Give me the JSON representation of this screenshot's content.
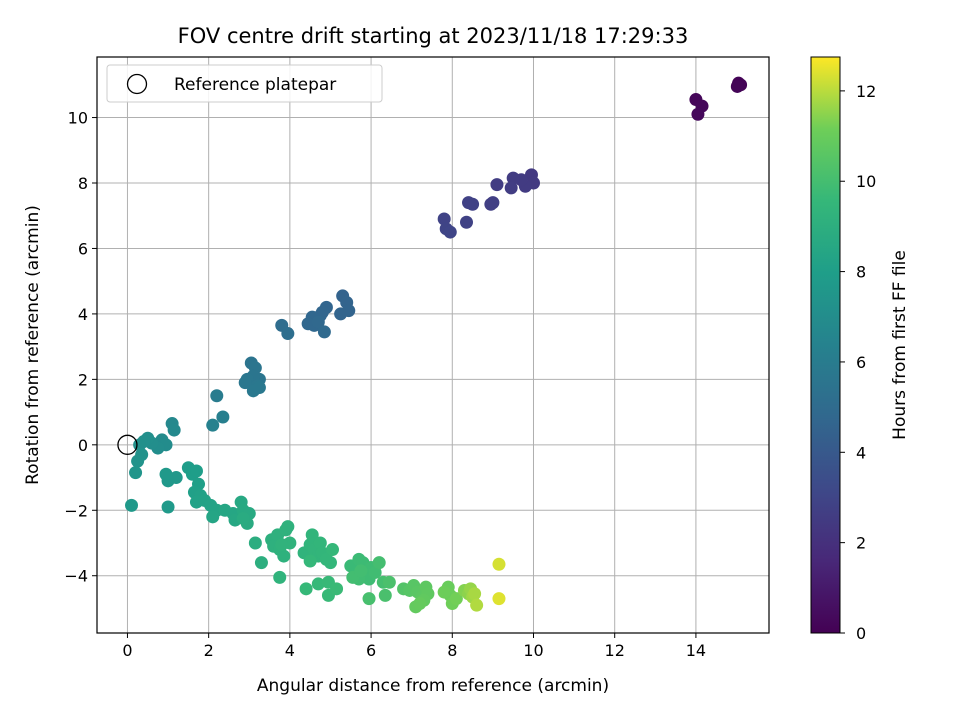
{
  "chart_data": {
    "type": "scatter",
    "title": "FOV centre drift starting at 2023/11/18 17:29:33",
    "xlabel": "Angular distance from reference (arcmin)",
    "ylabel": "Rotation from reference (arcmin)",
    "xlim": [
      -0.75,
      15.8
    ],
    "ylim": [
      -5.75,
      11.85
    ],
    "xticks": [
      0,
      2,
      4,
      6,
      8,
      10,
      12,
      14
    ],
    "yticks": [
      -4,
      -2,
      0,
      2,
      4,
      6,
      8,
      10
    ],
    "grid": true,
    "legend": {
      "position": "top-left",
      "entries": [
        "Reference platepar"
      ]
    },
    "reference_point": {
      "x": 0,
      "y": 0
    },
    "colorbar": {
      "label": "Hours from first FF file",
      "colormap": "viridis",
      "range": [
        0,
        12.75
      ],
      "ticks": [
        0,
        2,
        4,
        6,
        8,
        10,
        12
      ]
    },
    "points": [
      {
        "x": 15.05,
        "y": 11.05,
        "c": 0.1
      },
      {
        "x": 15.1,
        "y": 11.0,
        "c": 0.1
      },
      {
        "x": 15.02,
        "y": 10.95,
        "c": 0.15
      },
      {
        "x": 14.0,
        "y": 10.55,
        "c": 0.2
      },
      {
        "x": 14.15,
        "y": 10.35,
        "c": 0.25
      },
      {
        "x": 14.05,
        "y": 10.1,
        "c": 0.3
      },
      {
        "x": 9.95,
        "y": 8.25,
        "c": 2.4
      },
      {
        "x": 10.0,
        "y": 8.0,
        "c": 2.45
      },
      {
        "x": 9.8,
        "y": 7.9,
        "c": 2.5
      },
      {
        "x": 9.7,
        "y": 8.1,
        "c": 2.5
      },
      {
        "x": 9.5,
        "y": 8.15,
        "c": 2.55
      },
      {
        "x": 9.45,
        "y": 7.85,
        "c": 2.6
      },
      {
        "x": 9.1,
        "y": 7.95,
        "c": 2.6
      },
      {
        "x": 9.0,
        "y": 7.4,
        "c": 2.7
      },
      {
        "x": 8.95,
        "y": 7.35,
        "c": 2.7
      },
      {
        "x": 8.5,
        "y": 7.35,
        "c": 2.8
      },
      {
        "x": 8.4,
        "y": 7.4,
        "c": 2.8
      },
      {
        "x": 8.35,
        "y": 6.8,
        "c": 2.85
      },
      {
        "x": 7.8,
        "y": 6.9,
        "c": 2.9
      },
      {
        "x": 7.85,
        "y": 6.6,
        "c": 2.95
      },
      {
        "x": 7.95,
        "y": 6.5,
        "c": 3.0
      },
      {
        "x": 5.3,
        "y": 4.55,
        "c": 4.5
      },
      {
        "x": 5.4,
        "y": 4.35,
        "c": 4.55
      },
      {
        "x": 5.45,
        "y": 4.1,
        "c": 4.6
      },
      {
        "x": 5.25,
        "y": 4.0,
        "c": 4.6
      },
      {
        "x": 4.9,
        "y": 4.2,
        "c": 4.65
      },
      {
        "x": 4.8,
        "y": 4.05,
        "c": 4.7
      },
      {
        "x": 4.75,
        "y": 3.95,
        "c": 4.7
      },
      {
        "x": 4.55,
        "y": 3.9,
        "c": 4.75
      },
      {
        "x": 4.45,
        "y": 3.7,
        "c": 4.8
      },
      {
        "x": 4.6,
        "y": 3.65,
        "c": 4.8
      },
      {
        "x": 4.7,
        "y": 3.75,
        "c": 4.85
      },
      {
        "x": 4.85,
        "y": 3.45,
        "c": 4.9
      },
      {
        "x": 3.8,
        "y": 3.65,
        "c": 5.1
      },
      {
        "x": 3.95,
        "y": 3.4,
        "c": 5.15
      },
      {
        "x": 3.05,
        "y": 2.5,
        "c": 5.5
      },
      {
        "x": 3.15,
        "y": 2.35,
        "c": 5.55
      },
      {
        "x": 3.25,
        "y": 2.0,
        "c": 5.6
      },
      {
        "x": 3.1,
        "y": 2.1,
        "c": 5.6
      },
      {
        "x": 2.95,
        "y": 2.0,
        "c": 5.65
      },
      {
        "x": 2.9,
        "y": 1.9,
        "c": 5.7
      },
      {
        "x": 3.2,
        "y": 1.8,
        "c": 5.7
      },
      {
        "x": 3.1,
        "y": 1.65,
        "c": 5.75
      },
      {
        "x": 3.25,
        "y": 1.75,
        "c": 5.75
      },
      {
        "x": 2.2,
        "y": 1.5,
        "c": 6.0
      },
      {
        "x": 2.35,
        "y": 0.85,
        "c": 6.2
      },
      {
        "x": 2.1,
        "y": 0.6,
        "c": 6.3
      },
      {
        "x": 1.1,
        "y": 0.65,
        "c": 6.7
      },
      {
        "x": 1.15,
        "y": 0.45,
        "c": 6.75
      },
      {
        "x": 0.85,
        "y": 0.15,
        "c": 6.9
      },
      {
        "x": 0.95,
        "y": 0.0,
        "c": 6.95
      },
      {
        "x": 0.75,
        "y": -0.1,
        "c": 7.0
      },
      {
        "x": 0.6,
        "y": 0.05,
        "c": 7.05
      },
      {
        "x": 0.5,
        "y": 0.2,
        "c": 7.1
      },
      {
        "x": 0.4,
        "y": 0.1,
        "c": 7.15
      },
      {
        "x": 0.3,
        "y": 0.0,
        "c": 7.2
      },
      {
        "x": 0.35,
        "y": -0.3,
        "c": 7.3
      },
      {
        "x": 0.25,
        "y": -0.5,
        "c": 7.35
      },
      {
        "x": 0.2,
        "y": -0.85,
        "c": 7.45
      },
      {
        "x": 1.2,
        "y": -1.0,
        "c": 7.6
      },
      {
        "x": 1.0,
        "y": -1.1,
        "c": 7.65
      },
      {
        "x": 0.95,
        "y": -0.9,
        "c": 7.7
      },
      {
        "x": 0.1,
        "y": -1.85,
        "c": 7.7
      },
      {
        "x": 1.0,
        "y": -1.9,
        "c": 7.75
      },
      {
        "x": 1.5,
        "y": -0.7,
        "c": 7.9
      },
      {
        "x": 1.6,
        "y": -0.9,
        "c": 7.95
      },
      {
        "x": 1.7,
        "y": -0.8,
        "c": 8.0
      },
      {
        "x": 1.75,
        "y": -1.2,
        "c": 8.05
      },
      {
        "x": 1.65,
        "y": -1.45,
        "c": 8.1
      },
      {
        "x": 1.8,
        "y": -1.55,
        "c": 8.15
      },
      {
        "x": 1.7,
        "y": -1.75,
        "c": 8.2
      },
      {
        "x": 1.9,
        "y": -1.7,
        "c": 8.25
      },
      {
        "x": 2.05,
        "y": -1.85,
        "c": 8.3
      },
      {
        "x": 2.2,
        "y": -2.0,
        "c": 8.35
      },
      {
        "x": 2.1,
        "y": -2.2,
        "c": 8.4
      },
      {
        "x": 2.4,
        "y": -2.0,
        "c": 8.45
      },
      {
        "x": 2.6,
        "y": -2.1,
        "c": 8.5
      },
      {
        "x": 2.65,
        "y": -2.3,
        "c": 8.55
      },
      {
        "x": 2.8,
        "y": -1.75,
        "c": 8.6
      },
      {
        "x": 2.85,
        "y": -2.0,
        "c": 8.65
      },
      {
        "x": 3.0,
        "y": -2.1,
        "c": 8.7
      },
      {
        "x": 2.95,
        "y": -2.4,
        "c": 8.75
      },
      {
        "x": 2.85,
        "y": -2.25,
        "c": 8.8
      },
      {
        "x": 3.15,
        "y": -3.0,
        "c": 8.9
      },
      {
        "x": 3.3,
        "y": -3.6,
        "c": 9.0
      },
      {
        "x": 3.55,
        "y": -2.9,
        "c": 9.05
      },
      {
        "x": 3.6,
        "y": -3.1,
        "c": 9.1
      },
      {
        "x": 3.7,
        "y": -2.75,
        "c": 9.1
      },
      {
        "x": 3.75,
        "y": -3.2,
        "c": 9.15
      },
      {
        "x": 3.85,
        "y": -3.4,
        "c": 9.15
      },
      {
        "x": 3.9,
        "y": -2.6,
        "c": 9.2
      },
      {
        "x": 3.95,
        "y": -2.5,
        "c": 9.2
      },
      {
        "x": 4.0,
        "y": -3.0,
        "c": 9.25
      },
      {
        "x": 3.8,
        "y": -3.05,
        "c": 9.25
      },
      {
        "x": 3.75,
        "y": -4.05,
        "c": 9.3
      },
      {
        "x": 4.35,
        "y": -3.3,
        "c": 9.3
      },
      {
        "x": 4.5,
        "y": -3.05,
        "c": 9.35
      },
      {
        "x": 4.55,
        "y": -2.75,
        "c": 9.35
      },
      {
        "x": 4.6,
        "y": -3.2,
        "c": 9.4
      },
      {
        "x": 4.7,
        "y": -3.4,
        "c": 9.4
      },
      {
        "x": 4.75,
        "y": -3.0,
        "c": 9.45
      },
      {
        "x": 4.8,
        "y": -3.3,
        "c": 9.45
      },
      {
        "x": 4.9,
        "y": -3.5,
        "c": 9.5
      },
      {
        "x": 5.0,
        "y": -3.6,
        "c": 9.5
      },
      {
        "x": 5.05,
        "y": -3.2,
        "c": 9.55
      },
      {
        "x": 4.5,
        "y": -3.55,
        "c": 9.55
      },
      {
        "x": 4.4,
        "y": -4.4,
        "c": 9.6
      },
      {
        "x": 4.7,
        "y": -4.25,
        "c": 9.6
      },
      {
        "x": 4.95,
        "y": -4.2,
        "c": 9.65
      },
      {
        "x": 4.95,
        "y": -4.6,
        "c": 9.65
      },
      {
        "x": 5.15,
        "y": -4.4,
        "c": 9.7
      },
      {
        "x": 5.5,
        "y": -3.7,
        "c": 9.7
      },
      {
        "x": 5.6,
        "y": -4.0,
        "c": 9.75
      },
      {
        "x": 5.7,
        "y": -3.5,
        "c": 9.75
      },
      {
        "x": 5.8,
        "y": -3.6,
        "c": 9.8
      },
      {
        "x": 5.85,
        "y": -3.9,
        "c": 9.8
      },
      {
        "x": 5.95,
        "y": -4.1,
        "c": 9.85
      },
      {
        "x": 6.0,
        "y": -3.75,
        "c": 9.85
      },
      {
        "x": 6.1,
        "y": -3.9,
        "c": 9.9
      },
      {
        "x": 5.7,
        "y": -4.1,
        "c": 9.9
      },
      {
        "x": 5.55,
        "y": -4.05,
        "c": 9.95
      },
      {
        "x": 5.75,
        "y": -3.85,
        "c": 9.95
      },
      {
        "x": 6.2,
        "y": -3.6,
        "c": 10.0
      },
      {
        "x": 6.3,
        "y": -4.2,
        "c": 10.05
      },
      {
        "x": 5.95,
        "y": -4.7,
        "c": 10.1
      },
      {
        "x": 6.35,
        "y": -4.6,
        "c": 10.15
      },
      {
        "x": 6.45,
        "y": -4.2,
        "c": 10.2
      },
      {
        "x": 6.8,
        "y": -4.4,
        "c": 10.4
      },
      {
        "x": 6.95,
        "y": -4.45,
        "c": 10.5
      },
      {
        "x": 7.05,
        "y": -4.3,
        "c": 10.55
      },
      {
        "x": 7.15,
        "y": -4.5,
        "c": 10.6
      },
      {
        "x": 7.25,
        "y": -4.65,
        "c": 10.65
      },
      {
        "x": 7.35,
        "y": -4.35,
        "c": 10.7
      },
      {
        "x": 7.4,
        "y": -4.55,
        "c": 10.75
      },
      {
        "x": 7.3,
        "y": -4.75,
        "c": 10.8
      },
      {
        "x": 7.1,
        "y": -4.95,
        "c": 10.85
      },
      {
        "x": 7.2,
        "y": -4.85,
        "c": 10.9
      },
      {
        "x": 7.9,
        "y": -4.35,
        "c": 11.0
      },
      {
        "x": 7.95,
        "y": -4.6,
        "c": 11.05
      },
      {
        "x": 7.8,
        "y": -4.5,
        "c": 11.1
      },
      {
        "x": 8.0,
        "y": -4.85,
        "c": 11.15
      },
      {
        "x": 8.1,
        "y": -4.7,
        "c": 11.2
      },
      {
        "x": 8.3,
        "y": -4.45,
        "c": 11.4
      },
      {
        "x": 8.4,
        "y": -4.55,
        "c": 11.5
      },
      {
        "x": 8.45,
        "y": -4.4,
        "c": 11.6
      },
      {
        "x": 8.5,
        "y": -4.65,
        "c": 11.7
      },
      {
        "x": 8.55,
        "y": -4.55,
        "c": 11.8
      },
      {
        "x": 8.6,
        "y": -4.9,
        "c": 11.9
      },
      {
        "x": 9.15,
        "y": -3.65,
        "c": 12.3
      },
      {
        "x": 9.15,
        "y": -4.7,
        "c": 12.4
      }
    ]
  }
}
